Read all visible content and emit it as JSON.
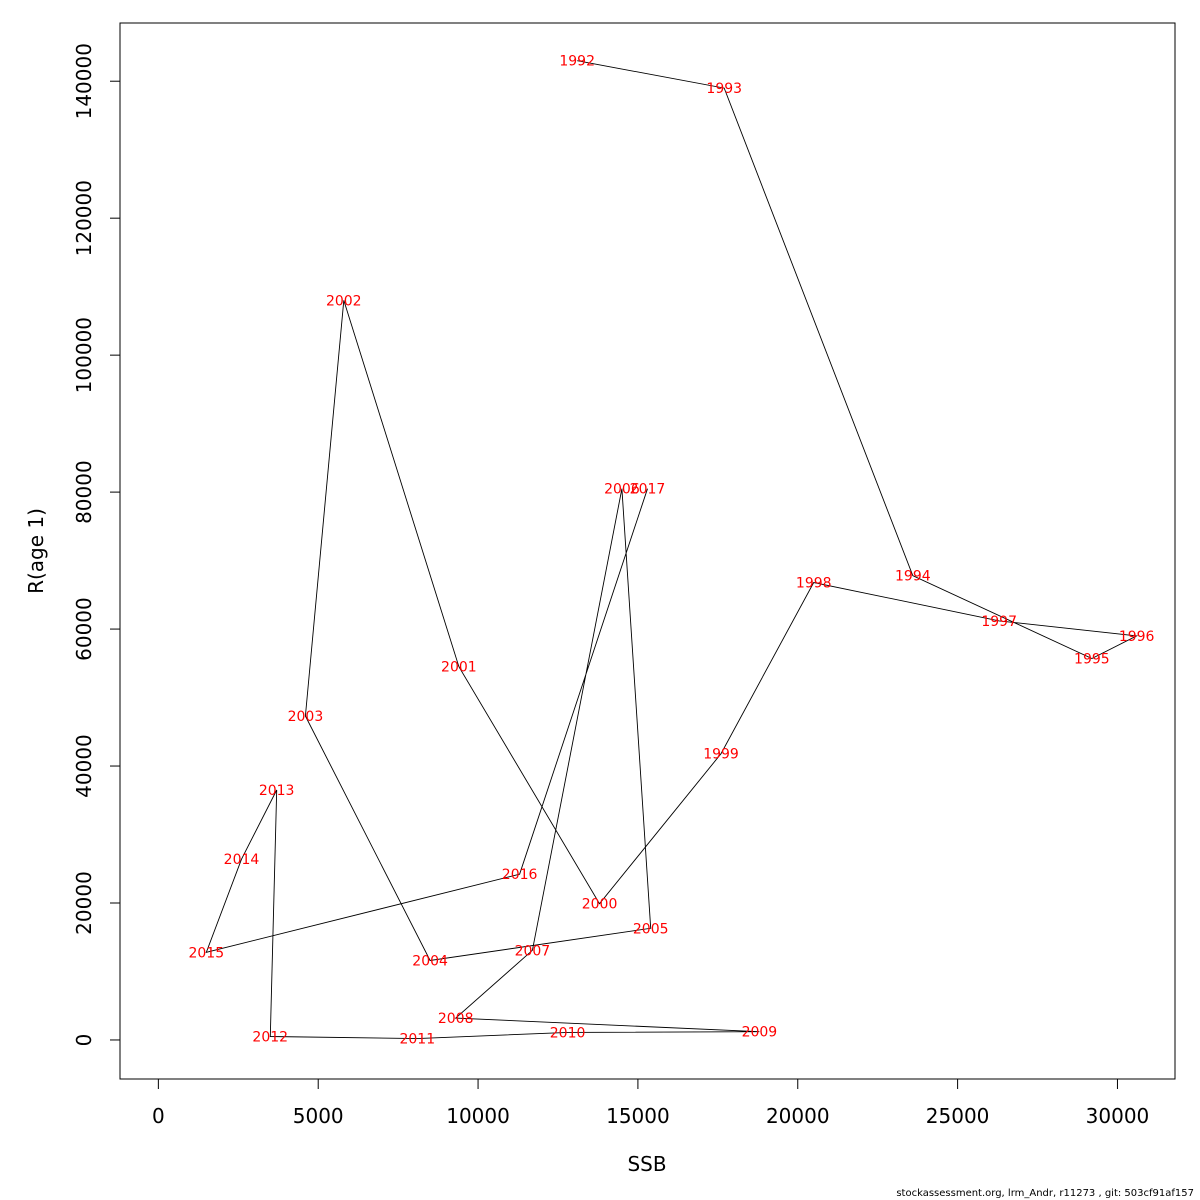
{
  "chart_data": {
    "type": "line",
    "xlabel": "SSB",
    "ylabel": "R(age 1)",
    "xlim": [
      -1200,
      31800
    ],
    "ylim": [
      -5700,
      148500
    ],
    "x_ticks": [
      0,
      5000,
      10000,
      15000,
      20000,
      25000,
      30000
    ],
    "x_tick_labels": [
      "0",
      "5000",
      "10000",
      "15000",
      "20000",
      "25000",
      "30000"
    ],
    "y_ticks": [
      0,
      20000,
      40000,
      60000,
      80000,
      100000,
      120000,
      140000
    ],
    "y_tick_labels": [
      "0",
      "20000",
      "40000",
      "60000",
      "80000",
      "100000",
      "120000",
      "140000"
    ],
    "grid": false,
    "line_color": "#000000",
    "label_color": "#ff0000",
    "points": [
      {
        "label": "1992",
        "x": 13100,
        "y": 143000
      },
      {
        "label": "1993",
        "x": 17700,
        "y": 139000
      },
      {
        "label": "1994",
        "x": 23600,
        "y": 67800
      },
      {
        "label": "1995",
        "x": 29200,
        "y": 55700
      },
      {
        "label": "1996",
        "x": 30600,
        "y": 59000
      },
      {
        "label": "1997",
        "x": 26300,
        "y": 61200
      },
      {
        "label": "1998",
        "x": 20500,
        "y": 66800
      },
      {
        "label": "1999",
        "x": 17600,
        "y": 41800
      },
      {
        "label": "2000",
        "x": 13800,
        "y": 19900
      },
      {
        "label": "2001",
        "x": 9400,
        "y": 54500
      },
      {
        "label": "2002",
        "x": 5800,
        "y": 108000
      },
      {
        "label": "2003",
        "x": 4600,
        "y": 47300
      },
      {
        "label": "2004",
        "x": 8500,
        "y": 11600
      },
      {
        "label": "2005",
        "x": 15400,
        "y": 16300
      },
      {
        "label": "2006",
        "x": 14500,
        "y": 80500
      },
      {
        "label": "2007",
        "x": 11700,
        "y": 13100
      },
      {
        "label": "2008",
        "x": 9300,
        "y": 3200
      },
      {
        "label": "2009",
        "x": 18800,
        "y": 1200
      },
      {
        "label": "2010",
        "x": 12800,
        "y": 1100
      },
      {
        "label": "2011",
        "x": 8100,
        "y": 200
      },
      {
        "label": "2012",
        "x": 3500,
        "y": 500
      },
      {
        "label": "2013",
        "x": 3700,
        "y": 36500
      },
      {
        "label": "2014",
        "x": 2600,
        "y": 26400
      },
      {
        "label": "2015",
        "x": 1500,
        "y": 12800
      },
      {
        "label": "2016",
        "x": 11300,
        "y": 24200
      },
      {
        "label": "2017",
        "x": 15300,
        "y": 80500
      }
    ]
  },
  "footer": {
    "text": "stockassessment.org, lrm_Andr, r11273 , git: 503cf91af157"
  }
}
